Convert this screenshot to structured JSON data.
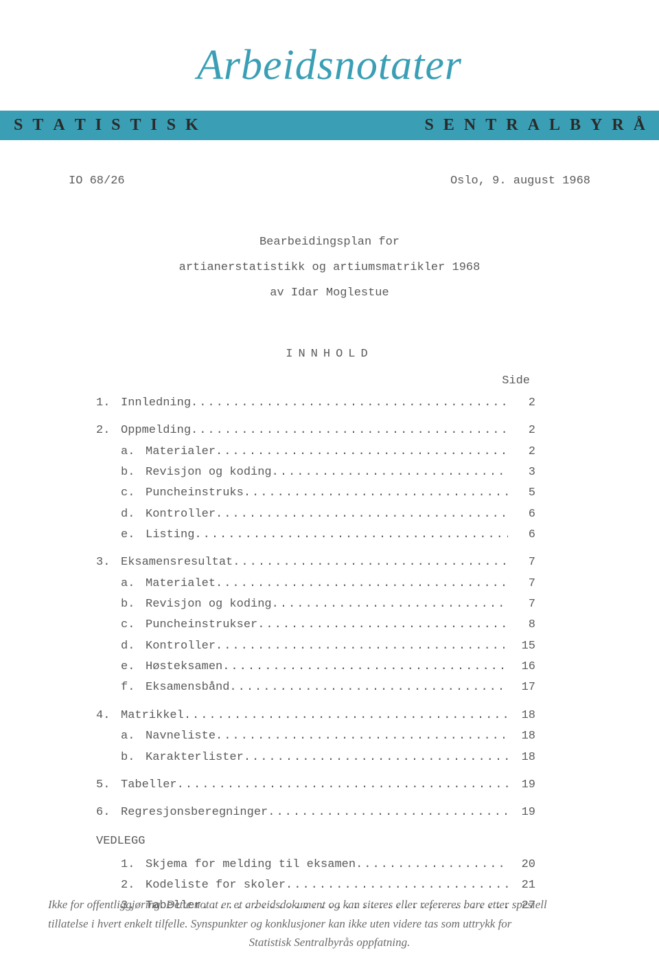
{
  "script_title": "Arbeidsnotater",
  "banner": {
    "left_chars": [
      "S",
      "T",
      "A",
      "T",
      "I",
      "S",
      "T",
      "I",
      "S",
      "K"
    ],
    "right_chars": [
      "S",
      "E",
      "N",
      "T",
      "R",
      "A",
      "L",
      "B",
      "Y",
      "R",
      "Å"
    ],
    "background_color": "#3a9fb5",
    "text_color": "#2a2a2a"
  },
  "doc_id": "IO  68/26",
  "doc_date": "Oslo, 9. august 1968",
  "title_block": {
    "line1": "Bearbeidingsplan for",
    "line2": "artianerstatistikk og artiumsmatrikler 1968",
    "line3": "av  Idar Moglestue"
  },
  "toc": {
    "heading": "INNHOLD",
    "side_label": "Side",
    "dots": ".........................................",
    "sections": [
      {
        "num": "1.",
        "label": "Innledning",
        "page": "2",
        "subs": []
      },
      {
        "num": "2.",
        "label": "Oppmelding",
        "page": "2",
        "subs": [
          {
            "num": "a.",
            "label": "Materialer",
            "page": "2"
          },
          {
            "num": "b.",
            "label": "Revisjon og koding",
            "page": "3"
          },
          {
            "num": "c.",
            "label": "Puncheinstruks",
            "page": "5"
          },
          {
            "num": "d.",
            "label": "Kontroller",
            "page": "6"
          },
          {
            "num": "e.",
            "label": "Listing",
            "page": "6"
          }
        ]
      },
      {
        "num": "3.",
        "label": "Eksamensresultat",
        "page": "7",
        "subs": [
          {
            "num": "a.",
            "label": "Materialet",
            "page": "7"
          },
          {
            "num": "b.",
            "label": "Revisjon og koding",
            "page": "7"
          },
          {
            "num": "c.",
            "label": "Puncheinstrukser",
            "page": "8"
          },
          {
            "num": "d.",
            "label": "Kontroller",
            "page": "15"
          },
          {
            "num": "e.",
            "label": "Høsteksamen",
            "page": "16"
          },
          {
            "num": "f.",
            "label": "Eksamensbånd",
            "page": "17"
          }
        ]
      },
      {
        "num": "4.",
        "label": "Matrikkel",
        "page": "18",
        "subs": [
          {
            "num": "a.",
            "label": "Navneliste",
            "page": "18"
          },
          {
            "num": "b.",
            "label": "Karakterlister",
            "page": "18"
          }
        ]
      },
      {
        "num": "5.",
        "label": "Tabeller",
        "page": "19",
        "subs": []
      },
      {
        "num": "6.",
        "label": "Regresjonsberegninger",
        "page": "19",
        "subs": []
      }
    ],
    "vedlegg": {
      "heading": "VEDLEGG",
      "items": [
        {
          "num": "1.",
          "label": "Skjema for melding til eksamen",
          "page": "20"
        },
        {
          "num": "2.",
          "label": "Kodeliste for skoler",
          "page": "21"
        },
        {
          "num": "3.",
          "label": "Tabeller",
          "page": "27"
        }
      ]
    }
  },
  "footer": {
    "line1": "Ikke for offentliggjøring. Dette notat er et arbeidsdokument og kan siteres eller refereres bare etter spesiell",
    "line2": "tillatelse i hvert enkelt tilfelle. Synspunkter og konklusjoner kan ikke uten videre tas som uttrykk for",
    "line3": "Statistisk Sentralbyrås oppfatning."
  },
  "colors": {
    "teal": "#3a9fb5",
    "body_text": "#5a5a5a",
    "footer_text": "#6a6a6a",
    "background": "#ffffff"
  },
  "typography": {
    "body_font": "Courier New",
    "body_size_pt": 13,
    "script_title_font": "Brush Script MT",
    "script_title_size_pt": 46,
    "banner_font": "Georgia",
    "banner_size_pt": 18,
    "footer_font": "Georgia",
    "footer_size_pt": 13
  }
}
